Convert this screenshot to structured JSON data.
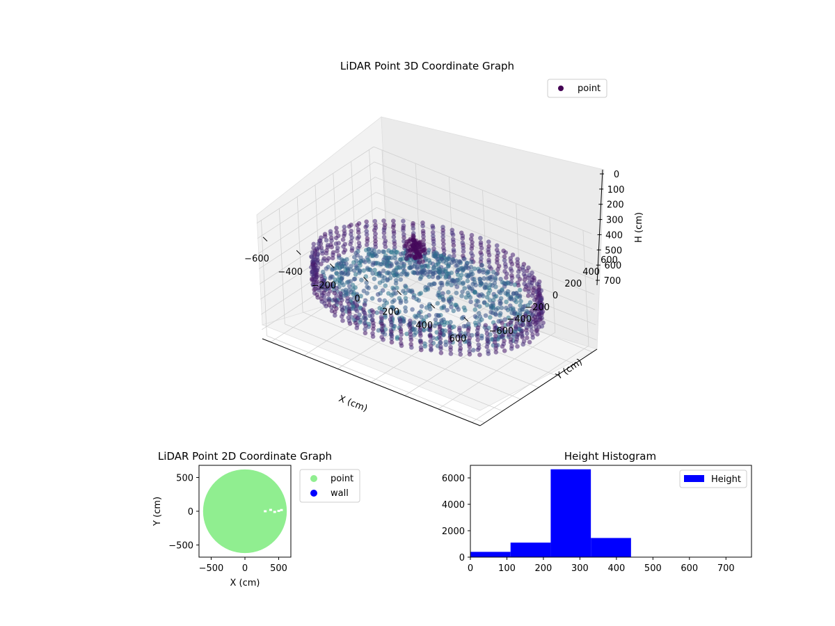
{
  "colors": {
    "point_3d": "#440154",
    "point_2d": "#90ee90",
    "wall": "#0000ff",
    "hist": "#0000ff",
    "pane": "#f2f2f2",
    "grid": "#d0d0d0"
  },
  "chart_data": [
    {
      "type": "scatter",
      "title": "LiDAR Point 3D Coordinate Graph",
      "xlabel": "X (cm)",
      "ylabel": "Y (cm)",
      "zlabel": "H (cm)",
      "x_ticks": [
        "−600",
        "−400",
        "−200",
        "0",
        "200",
        "400",
        "600"
      ],
      "y_ticks": [
        "−600",
        "−400",
        "−200",
        "0",
        "200",
        "400",
        "600"
      ],
      "z_ticks": [
        "0",
        "100",
        "200",
        "300",
        "400",
        "500",
        "600",
        "700"
      ],
      "xlim": [
        -650,
        650
      ],
      "ylim": [
        -650,
        650
      ],
      "zlim": [
        0,
        760
      ],
      "z_inverted": true,
      "legend": [
        {
          "name": "point",
          "color": "#440154"
        }
      ],
      "legend_position": "top-right",
      "grid": true,
      "colormap": "viridis (dark purple at edges, teal toward center)",
      "description_of_data": "ring of points at radius ~600 cm between heights ~300–500 cm, inner fill sloping toward a central peak"
    },
    {
      "type": "scatter",
      "title": "LiDAR Point 2D Coordinate Graph",
      "xlabel": "X (cm)",
      "ylabel": "Y (cm)",
      "x_ticks": [
        "−500",
        "0",
        "500"
      ],
      "y_ticks": [
        "500",
        "0",
        "−500"
      ],
      "xlim": [
        -680,
        680
      ],
      "ylim": [
        -680,
        680
      ],
      "series": [
        {
          "name": "point",
          "color": "#90ee90",
          "shape": "filled disk radius ~620 cm"
        },
        {
          "name": "wall",
          "color": "#0000ff",
          "shape": "none visible"
        }
      ],
      "legend_position": "outside right",
      "grid": false
    },
    {
      "type": "bar",
      "title": "Height Histogram",
      "xlabel": "",
      "ylabel": "",
      "x_ticks": [
        "0",
        "100",
        "200",
        "300",
        "400",
        "500",
        "600",
        "700"
      ],
      "y_ticks": [
        "0",
        "2000",
        "4000",
        "6000"
      ],
      "xlim": [
        0,
        770
      ],
      "ylim": [
        0,
        6950
      ],
      "bins": [
        {
          "from": 0,
          "to": 110,
          "value": 400
        },
        {
          "from": 110,
          "to": 220,
          "value": 1100
        },
        {
          "from": 220,
          "to": 330,
          "value": 6650
        },
        {
          "from": 330,
          "to": 440,
          "value": 1450
        },
        {
          "from": 440,
          "to": 550,
          "value": 20
        },
        {
          "from": 550,
          "to": 660,
          "value": 10
        },
        {
          "from": 660,
          "to": 770,
          "value": 5
        }
      ],
      "legend": [
        {
          "name": "Height",
          "color": "#0000ff"
        }
      ],
      "legend_position": "top-right",
      "grid": false
    }
  ]
}
